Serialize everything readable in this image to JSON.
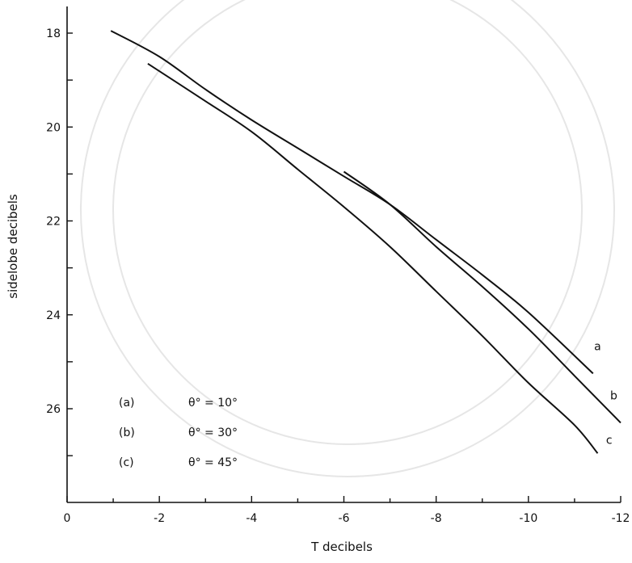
{
  "chart_data": {
    "type": "line",
    "xlabel": "T decibels",
    "ylabel": "sidelobe decibels",
    "xlim": [
      0,
      -12
    ],
    "ylim": [
      17.5,
      28
    ],
    "y_inverted": true,
    "grid": false,
    "x_ticks": [
      {
        "value": 0,
        "label": "0"
      },
      {
        "value": -2,
        "label": "-2"
      },
      {
        "value": -4,
        "label": "-4"
      },
      {
        "value": -6,
        "label": "-6"
      },
      {
        "value": -8,
        "label": "-8"
      },
      {
        "value": -10,
        "label": "-10"
      },
      {
        "value": -12,
        "label": "-12"
      }
    ],
    "y_ticks": [
      {
        "value": 18,
        "label": "18"
      },
      {
        "value": 19,
        "label": ""
      },
      {
        "value": 20,
        "label": "20"
      },
      {
        "value": 21,
        "label": ""
      },
      {
        "value": 22,
        "label": "22"
      },
      {
        "value": 23,
        "label": ""
      },
      {
        "value": 24,
        "label": "24"
      },
      {
        "value": 25,
        "label": ""
      },
      {
        "value": 26,
        "label": "26"
      },
      {
        "value": 27,
        "label": ""
      }
    ],
    "series": [
      {
        "name": "a",
        "x": [
          -0.95,
          -2,
          -3,
          -4,
          -5,
          -6,
          -7,
          -8,
          -9,
          -10,
          -11.4
        ],
        "y": [
          17.95,
          18.5,
          19.2,
          19.85,
          20.45,
          21.05,
          21.65,
          22.4,
          23.15,
          23.95,
          25.25
        ]
      },
      {
        "name": "b",
        "x": [
          -6,
          -7,
          -8,
          -9,
          -10,
          -11,
          -12
        ],
        "y": [
          20.95,
          21.65,
          22.55,
          23.4,
          24.3,
          25.3,
          26.3
        ]
      },
      {
        "name": "c",
        "x": [
          -1.75,
          -3,
          -4,
          -5,
          -6,
          -7,
          -8,
          -9,
          -10,
          -11,
          -11.5
        ],
        "y": [
          18.65,
          19.45,
          20.1,
          20.9,
          21.7,
          22.55,
          23.5,
          24.45,
          25.45,
          26.35,
          26.95
        ]
      }
    ],
    "curve_labels": [
      {
        "text": "a",
        "x": -11.5,
        "y": 24.75
      },
      {
        "text": "b",
        "x": -11.85,
        "y": 25.8
      },
      {
        "text": "c",
        "x": -11.75,
        "y": 26.75
      }
    ],
    "legend": {
      "placement": "bottom-left",
      "entries": [
        {
          "tag": "(a)",
          "text": "θ° = 10°"
        },
        {
          "tag": "(b)",
          "text": "θ° = 30°"
        },
        {
          "tag": "(c)",
          "text": "θ° = 45°"
        }
      ]
    }
  }
}
